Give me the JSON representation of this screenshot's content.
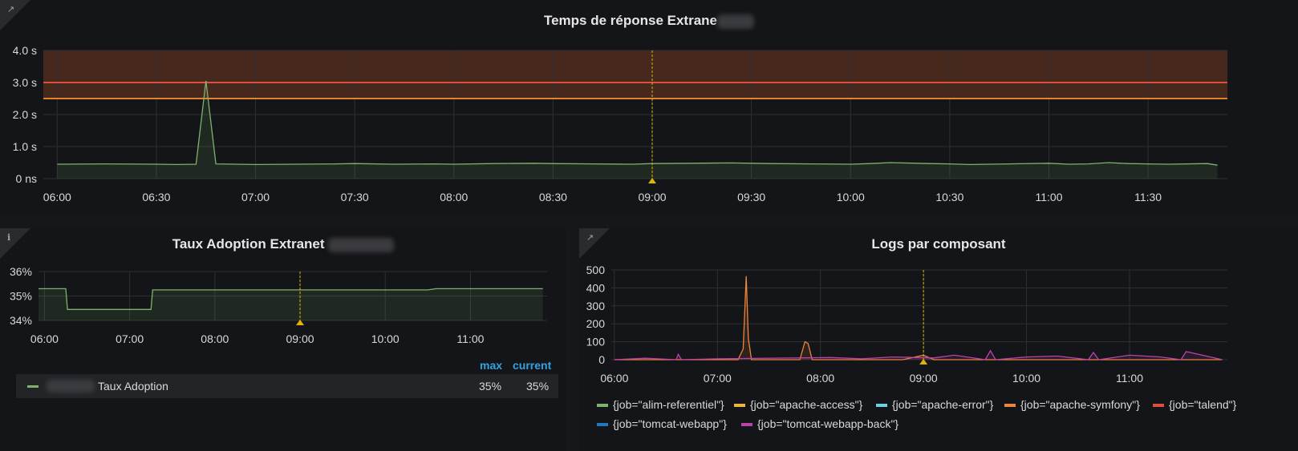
{
  "panels": {
    "top": {
      "title": "Temps de réponse Extrane",
      "corner_icon": "external-link-icon"
    },
    "left": {
      "title": "Taux Adoption Extranet",
      "corner_icon": "info-icon",
      "legend": {
        "headers": [
          "max",
          "current"
        ],
        "row": {
          "label": "Taux Adoption",
          "max": "35%",
          "current": "35%",
          "color": "#7eb26d"
        }
      }
    },
    "right": {
      "title": "Logs par composant",
      "corner_icon": "external-link-icon",
      "legend": [
        {
          "label": "{job=\"alim-referentiel\"}",
          "color": "#7eb26d"
        },
        {
          "label": "{job=\"apache-access\"}",
          "color": "#eab839"
        },
        {
          "label": "{job=\"apache-error\"}",
          "color": "#6ed0e0"
        },
        {
          "label": "{job=\"apache-symfony\"}",
          "color": "#ef843c"
        },
        {
          "label": "{job=\"talend\"}",
          "color": "#e24d42"
        },
        {
          "label": "{job=\"tomcat-webapp\"}",
          "color": "#1f78c1"
        },
        {
          "label": "{job=\"tomcat-webapp-back\"}",
          "color": "#ba43a9"
        }
      ]
    }
  },
  "chart_data": [
    {
      "type": "line",
      "title": "Temps de réponse Extrane",
      "x_ticks": [
        "06:00",
        "06:30",
        "07:00",
        "07:30",
        "08:00",
        "08:30",
        "09:00",
        "09:30",
        "10:00",
        "10:30",
        "11:00",
        "11:30"
      ],
      "y_ticks": [
        "0 ns",
        "1.0 s",
        "2.0 s",
        "3.0 s",
        "4.0 s"
      ],
      "ylim": [
        0,
        4
      ],
      "thresholds": [
        {
          "value": 2.5,
          "color": "#e5812b"
        },
        {
          "value": 3.0,
          "color": "#e24d42"
        }
      ],
      "series": [
        {
          "values": [
            0.45,
            0.46,
            0.45,
            0.44,
            0.45,
            3.05,
            0.46,
            0.45,
            0.44,
            0.45,
            0.46,
            0.47,
            0.45,
            0.46,
            0.45,
            0.47,
            0.48,
            0.47,
            0.46,
            0.45,
            0.47,
            0.48,
            0.49,
            0.48,
            0.47,
            0.46,
            0.45,
            0.47,
            0.5,
            0.47,
            0.46,
            0.44,
            0.46,
            0.48,
            0.45,
            0.46,
            0.5,
            0.47,
            0.46,
            0.45,
            0.47,
            0.42
          ],
          "x_hours": [
            6.0,
            6.25,
            6.5,
            6.6,
            6.7,
            6.75,
            6.8,
            6.9,
            7.0,
            7.2,
            7.4,
            7.5,
            7.7,
            7.9,
            8.0,
            8.2,
            8.4,
            8.5,
            8.7,
            8.9,
            9.0,
            9.2,
            9.4,
            9.5,
            9.6,
            9.8,
            10.0,
            10.1,
            10.2,
            10.4,
            10.5,
            10.6,
            10.8,
            11.0,
            11.1,
            11.2,
            11.3,
            11.4,
            11.5,
            11.6,
            11.8,
            11.85
          ],
          "color": "#7eb26d"
        }
      ],
      "marker_time": "09:00"
    },
    {
      "type": "line",
      "title": "Taux Adoption Extranet",
      "x_ticks": [
        "06:00",
        "07:00",
        "08:00",
        "09:00",
        "10:00",
        "11:00"
      ],
      "y_ticks": [
        "34%",
        "35%",
        "36%"
      ],
      "ylim": [
        34,
        36
      ],
      "series": [
        {
          "name": "Taux Adoption",
          "color": "#7eb26d",
          "x_hours": [
            5.93,
            6.25,
            6.27,
            7.25,
            7.27,
            10.5,
            10.6,
            11.85
          ],
          "values": [
            35.3,
            35.3,
            34.45,
            34.45,
            35.25,
            35.25,
            35.3,
            35.3
          ]
        }
      ],
      "marker_time": "09:00"
    },
    {
      "type": "line",
      "title": "Logs par composant",
      "x_ticks": [
        "06:00",
        "07:00",
        "08:00",
        "09:00",
        "10:00",
        "11:00"
      ],
      "y_ticks": [
        "0",
        "100",
        "200",
        "300",
        "400",
        "500"
      ],
      "ylim": [
        0,
        500
      ],
      "series": [
        {
          "name": "{job=\"apache-symfony\"}",
          "color": "#ef843c",
          "x_hours": [
            6.0,
            7.2,
            7.25,
            7.28,
            7.3,
            7.33,
            7.4,
            7.8,
            7.85,
            7.88,
            7.92,
            8.8,
            9.0,
            9.1,
            9.3,
            11.9
          ],
          "values": [
            0,
            0,
            60,
            465,
            120,
            0,
            0,
            0,
            100,
            90,
            0,
            0,
            25,
            0,
            0,
            0
          ]
        },
        {
          "name": "{job=\"tomcat-webapp-back\"}",
          "color": "#ba43a9",
          "x_hours": [
            6.0,
            6.3,
            6.6,
            6.62,
            6.65,
            7.0,
            8.1,
            8.4,
            8.7,
            9.1,
            9.3,
            9.6,
            9.65,
            9.7,
            10.0,
            10.3,
            10.6,
            10.65,
            10.7,
            11.0,
            11.3,
            11.5,
            11.55,
            11.9
          ],
          "values": [
            0,
            8,
            0,
            30,
            0,
            5,
            12,
            5,
            15,
            10,
            25,
            0,
            50,
            0,
            15,
            20,
            0,
            40,
            0,
            25,
            15,
            0,
            45,
            0
          ]
        }
      ],
      "marker_time": "09:00"
    }
  ]
}
